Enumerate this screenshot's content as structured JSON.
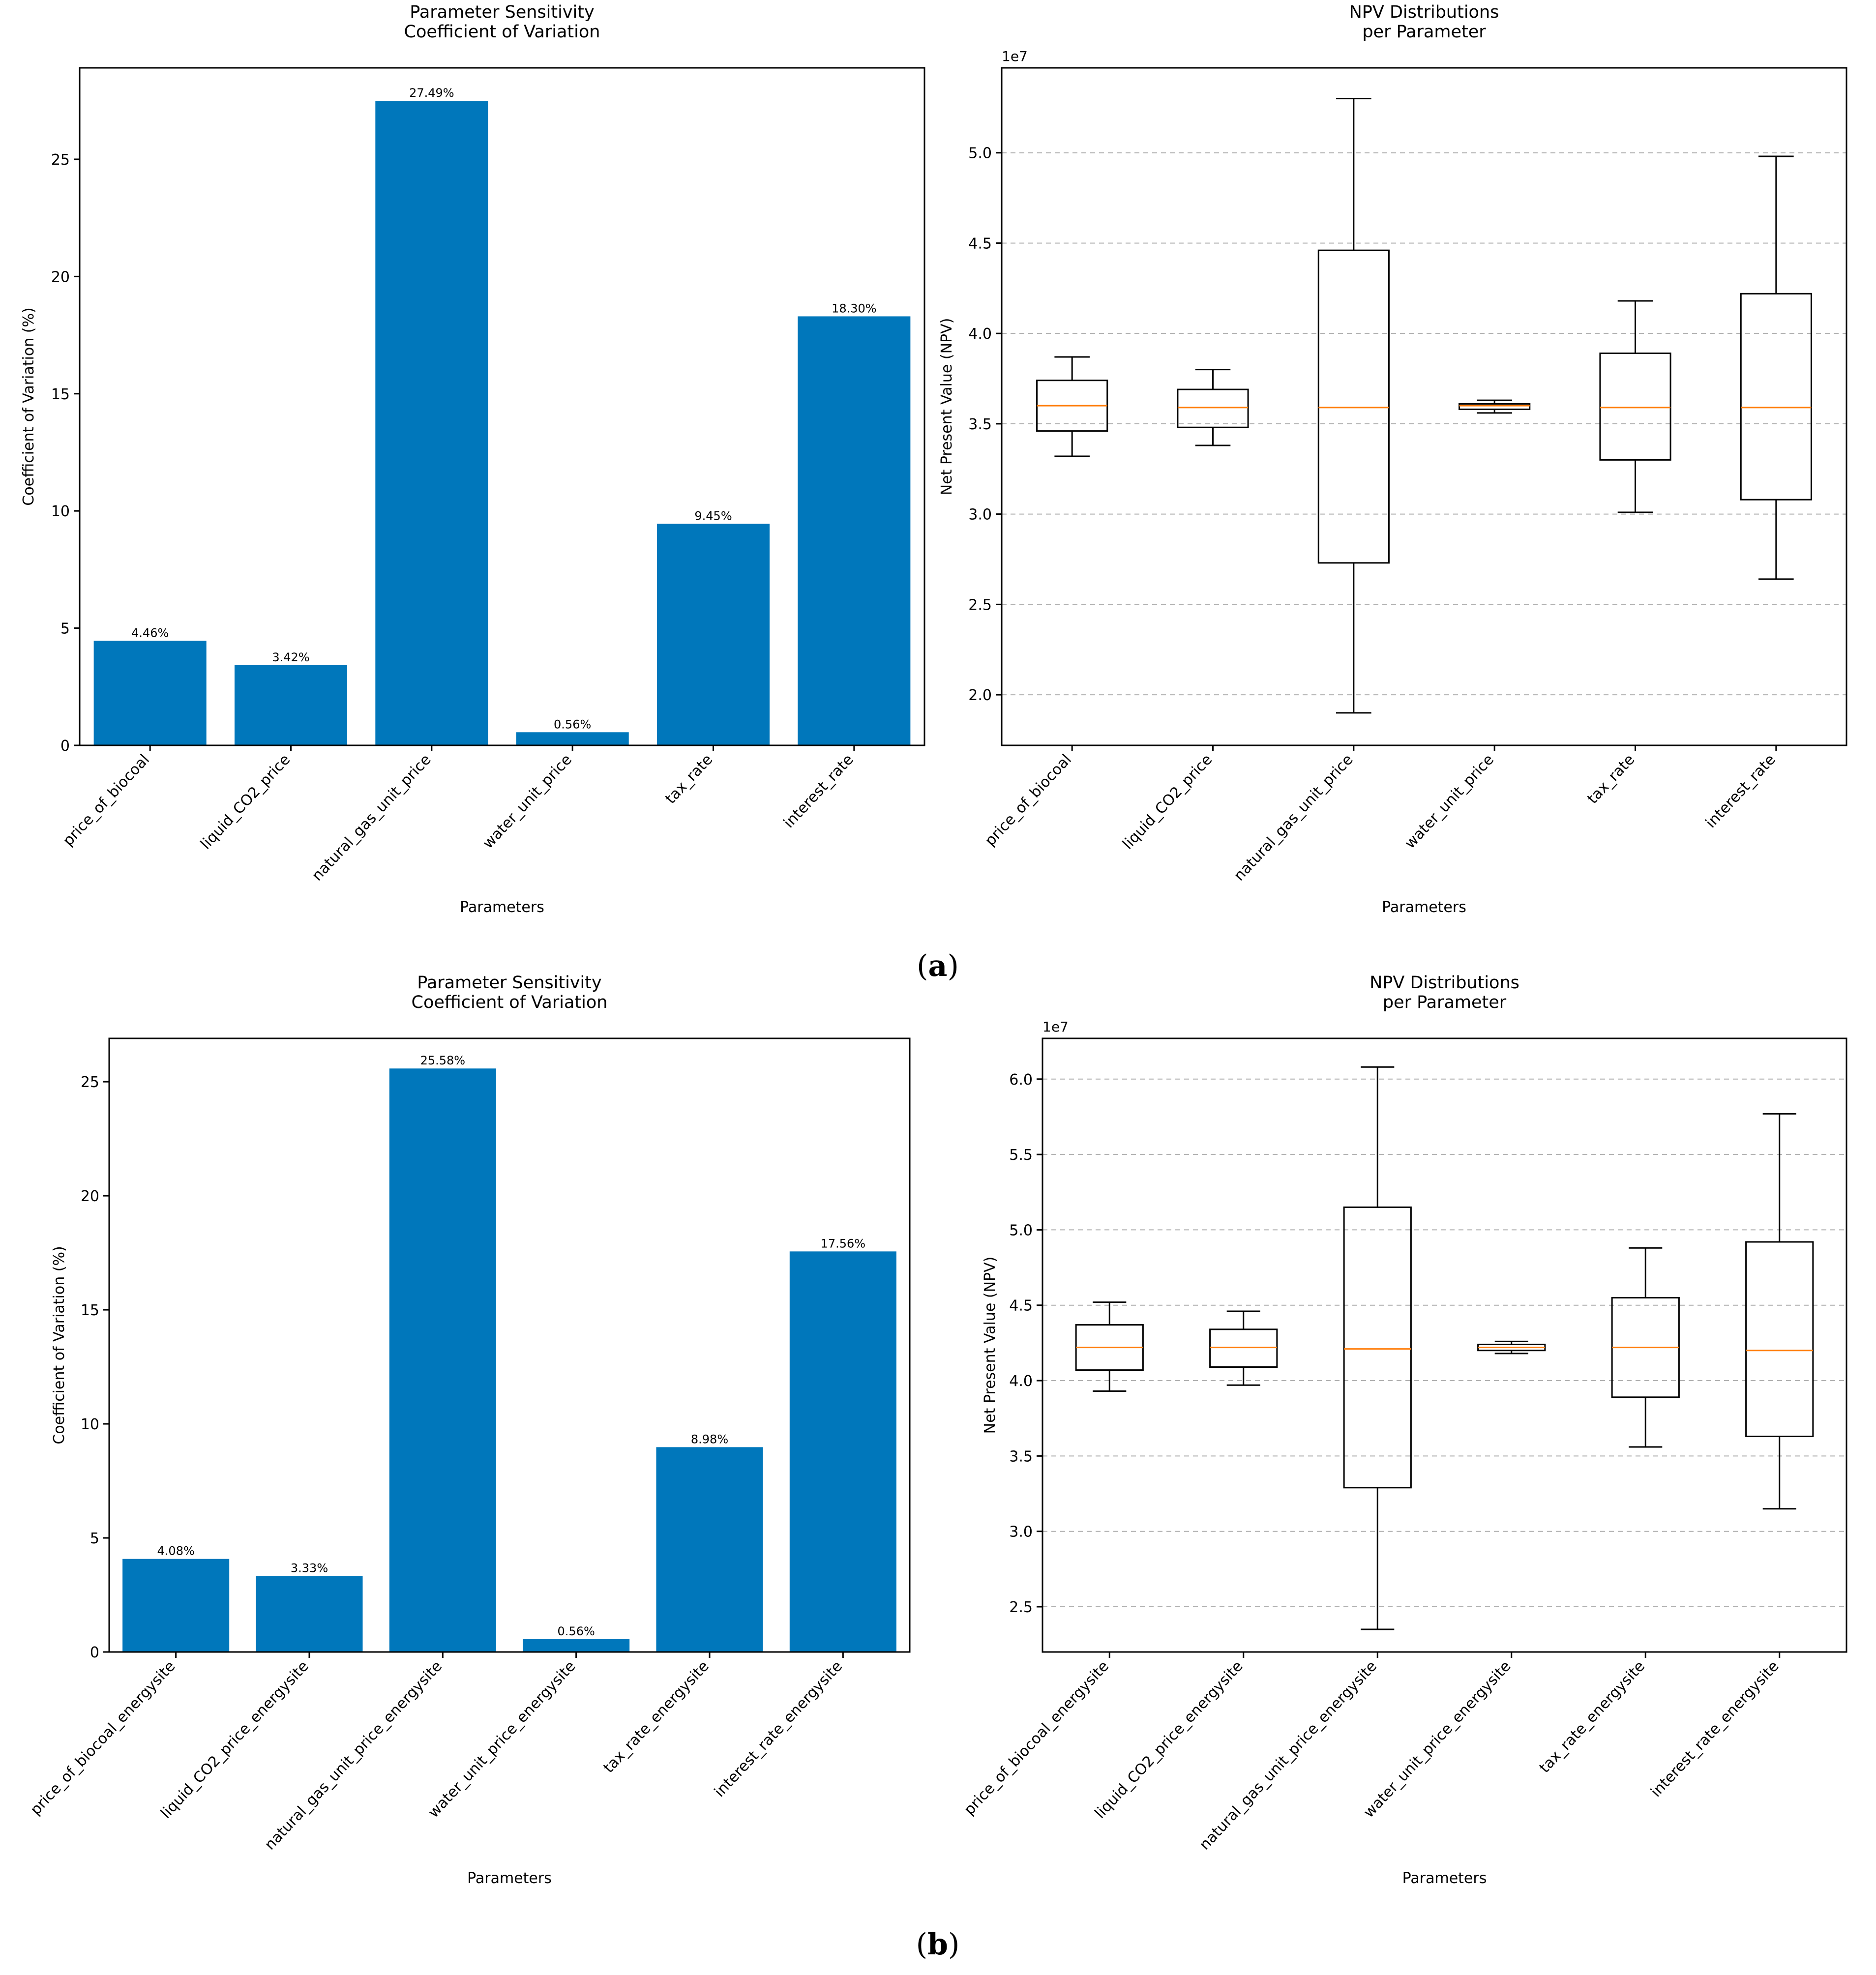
{
  "figure": {
    "panel_labels": [
      {
        "open": "(",
        "letter": "a",
        "close": ")"
      },
      {
        "open": "(",
        "letter": "b",
        "close": ")"
      }
    ]
  },
  "colors": {
    "bar": "#0077bb",
    "box_edge": "#000000",
    "median": "#ff7f0e",
    "grid": "#b0b0b0"
  },
  "chart_data": [
    {
      "type": "bar",
      "panel": "a",
      "title": "Parameter Sensitivity\nCoefficient of Variation",
      "xlabel": "Parameters",
      "ylabel": "Coefficient of Variation (%)",
      "categories": [
        "price_of_biocoal",
        "liquid_CO2_price",
        "natural_gas_unit_price",
        "water_unit_price",
        "tax_rate",
        "interest_rate"
      ],
      "values": [
        4.46,
        3.42,
        27.49,
        0.56,
        9.45,
        18.3
      ],
      "data_labels": [
        "4.46%",
        "3.42%",
        "27.49%",
        "0.56%",
        "9.45%",
        "18.30%"
      ],
      "yticks": [
        0,
        5,
        10,
        15,
        20,
        25
      ],
      "ytick_labels": [
        "0",
        "5",
        "10",
        "15",
        "20",
        "25"
      ],
      "ylim": [
        0,
        28.9
      ],
      "grid": false
    },
    {
      "type": "box",
      "panel": "a",
      "title": "NPV Distributions\nper Parameter",
      "xlabel": "Parameters",
      "ylabel": "Net Present Value (NPV)",
      "offset_label": "1e7",
      "categories": [
        "price_of_biocoal",
        "liquid_CO2_price",
        "natural_gas_unit_price",
        "water_unit_price",
        "tax_rate",
        "interest_rate"
      ],
      "boxes": [
        {
          "whislo": 3.32,
          "q1": 3.46,
          "med": 3.6,
          "q3": 3.74,
          "whishi": 3.87
        },
        {
          "whislo": 3.38,
          "q1": 3.48,
          "med": 3.59,
          "q3": 3.69,
          "whishi": 3.8
        },
        {
          "whislo": 1.9,
          "q1": 2.73,
          "med": 3.59,
          "q3": 4.46,
          "whishi": 5.3
        },
        {
          "whislo": 3.56,
          "q1": 3.58,
          "med": 3.6,
          "q3": 3.61,
          "whishi": 3.63
        },
        {
          "whislo": 3.01,
          "q1": 3.3,
          "med": 3.59,
          "q3": 3.89,
          "whishi": 4.18
        },
        {
          "whislo": 2.64,
          "q1": 3.08,
          "med": 3.59,
          "q3": 4.22,
          "whishi": 4.98
        }
      ],
      "yticks": [
        2.0,
        2.5,
        3.0,
        3.5,
        4.0,
        4.5,
        5.0
      ],
      "ytick_labels": [
        "2.0",
        "2.5",
        "3.0",
        "3.5",
        "4.0",
        "4.5",
        "5.0"
      ],
      "ylim": [
        1.72,
        5.47
      ],
      "grid": true
    },
    {
      "type": "bar",
      "panel": "b",
      "title": "Parameter Sensitivity\nCoefficient of Variation",
      "xlabel": "Parameters",
      "ylabel": "Coefficient of Variation (%)",
      "categories": [
        "price_of_biocoal_energysite",
        "liquid_CO2_price_energysite",
        "natural_gas_unit_price_energysite",
        "water_unit_price_energysite",
        "tax_rate_energysite",
        "interest_rate_energysite"
      ],
      "values": [
        4.08,
        3.33,
        25.58,
        0.56,
        8.98,
        17.56
      ],
      "data_labels": [
        "4.08%",
        "3.33%",
        "25.58%",
        "0.56%",
        "8.98%",
        "17.56%"
      ],
      "yticks": [
        0,
        5,
        10,
        15,
        20,
        25
      ],
      "ytick_labels": [
        "0",
        "5",
        "10",
        "15",
        "20",
        "25"
      ],
      "ylim": [
        0,
        26.9
      ],
      "grid": false
    },
    {
      "type": "box",
      "panel": "b",
      "title": "NPV Distributions\nper Parameter",
      "xlabel": "Parameters",
      "ylabel": "Net Present Value (NPV)",
      "offset_label": "1e7",
      "categories": [
        "price_of_biocoal_energysite",
        "liquid_CO2_price_energysite",
        "natural_gas_unit_price_energysite",
        "water_unit_price_energysite",
        "tax_rate_energysite",
        "interest_rate_energysite"
      ],
      "boxes": [
        {
          "whislo": 3.93,
          "q1": 4.07,
          "med": 4.22,
          "q3": 4.37,
          "whishi": 4.52
        },
        {
          "whislo": 3.97,
          "q1": 4.09,
          "med": 4.22,
          "q3": 4.34,
          "whishi": 4.46
        },
        {
          "whislo": 2.35,
          "q1": 3.29,
          "med": 4.21,
          "q3": 5.15,
          "whishi": 6.08
        },
        {
          "whislo": 4.18,
          "q1": 4.2,
          "med": 4.22,
          "q3": 4.24,
          "whishi": 4.26
        },
        {
          "whislo": 3.56,
          "q1": 3.89,
          "med": 4.22,
          "q3": 4.55,
          "whishi": 4.88
        },
        {
          "whislo": 3.15,
          "q1": 3.63,
          "med": 4.2,
          "q3": 4.92,
          "whishi": 5.77
        }
      ],
      "yticks": [
        2.5,
        3.0,
        3.5,
        4.0,
        4.5,
        5.0,
        5.5,
        6.0
      ],
      "ytick_labels": [
        "2.5",
        "3.0",
        "3.5",
        "4.0",
        "4.5",
        "5.0",
        "5.5",
        "6.0"
      ],
      "ylim": [
        2.2,
        6.27
      ],
      "grid": true
    }
  ]
}
